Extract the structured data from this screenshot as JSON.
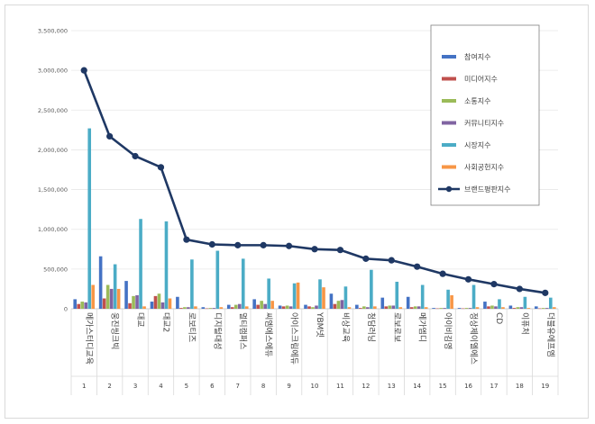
{
  "chart_data": {
    "type": "bar",
    "title": "",
    "xlabel": "",
    "ylabel": "",
    "ylim": [
      0,
      3500000
    ],
    "yticks": [
      0,
      500000,
      1000000,
      1500000,
      2000000,
      2500000,
      3000000,
      3500000
    ],
    "ytick_labels": [
      "0",
      "500,000",
      "1,000,000",
      "1,500,000",
      "2,000,000",
      "2,500,000",
      "3,000,000",
      "3,500,000"
    ],
    "index_labels": [
      "1",
      "2",
      "3",
      "4",
      "5",
      "6",
      "7",
      "8",
      "9",
      "10",
      "11",
      "12",
      "13",
      "14",
      "15",
      "16",
      "17",
      "18",
      "19"
    ],
    "categories": [
      "메가스터디교육",
      "웅진씽크빅",
      "대교",
      "대교2",
      "로보티즈",
      "디지털대성",
      "멀티캠퍼스",
      "씨엠에스에듀",
      "아이스크림에듀",
      "YBM넷",
      "비상교육",
      "청담러닝",
      "로보로보",
      "메가엠디",
      "아이비김영",
      "정상제이엘에스",
      "CD",
      "이퓨처",
      "더블유에프엠"
    ],
    "series": [
      {
        "name": "참여지수",
        "color": "#4472c4",
        "values": [
          120000,
          660000,
          350000,
          90000,
          150000,
          20000,
          50000,
          120000,
          40000,
          50000,
          190000,
          50000,
          140000,
          150000,
          10000,
          10000,
          90000,
          40000,
          30000
        ]
      },
      {
        "name": "미디어지수",
        "color": "#c0504d",
        "values": [
          60000,
          130000,
          70000,
          160000,
          10000,
          5000,
          20000,
          50000,
          30000,
          30000,
          60000,
          10000,
          30000,
          20000,
          5000,
          5000,
          30000,
          10000,
          5000
        ]
      },
      {
        "name": "소통지수",
        "color": "#9bbb59",
        "values": [
          90000,
          300000,
          160000,
          190000,
          20000,
          10000,
          50000,
          100000,
          40000,
          20000,
          100000,
          30000,
          40000,
          30000,
          10000,
          10000,
          40000,
          20000,
          10000
        ]
      },
      {
        "name": "커뮤니티지수",
        "color": "#8064a2",
        "values": [
          80000,
          250000,
          170000,
          80000,
          20000,
          10000,
          60000,
          60000,
          30000,
          40000,
          110000,
          20000,
          40000,
          30000,
          10000,
          10000,
          30000,
          20000,
          10000
        ]
      },
      {
        "name": "시장지수",
        "color": "#4bacc6",
        "values": [
          2270000,
          560000,
          1130000,
          1100000,
          620000,
          730000,
          630000,
          380000,
          320000,
          370000,
          280000,
          490000,
          340000,
          300000,
          240000,
          300000,
          120000,
          150000,
          140000
        ]
      },
      {
        "name": "사회공헌지수",
        "color": "#f79646",
        "values": [
          300000,
          250000,
          30000,
          130000,
          30000,
          20000,
          30000,
          100000,
          330000,
          270000,
          20000,
          30000,
          20000,
          20000,
          170000,
          20000,
          20000,
          10000,
          20000
        ]
      }
    ],
    "line": {
      "name": "브랜드평판지수",
      "color": "#1f3864",
      "values": [
        3000000,
        2170000,
        1920000,
        1780000,
        870000,
        810000,
        800000,
        800000,
        790000,
        750000,
        740000,
        630000,
        610000,
        530000,
        440000,
        370000,
        310000,
        250000,
        200000
      ]
    },
    "legend_position": "top-right"
  }
}
